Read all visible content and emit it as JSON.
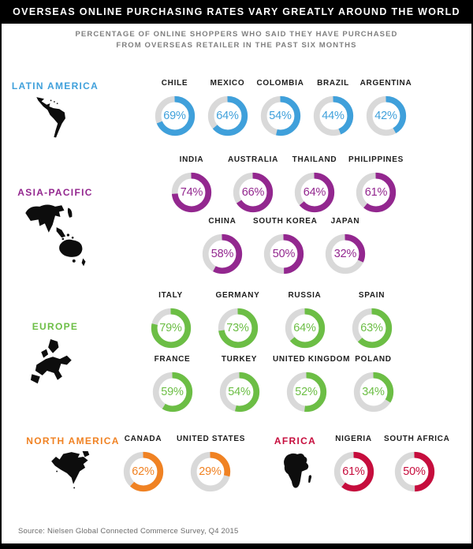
{
  "header": {
    "title": "OVERSEAS ONLINE PURCHASING RATES VARY GREATLY AROUND THE WORLD",
    "subtitle_line1": "PERCENTAGE OF ONLINE SHOPPERS WHO SAID THEY HAVE PURCHASED",
    "subtitle_line2": "FROM OVERSEAS RETAILER IN THE PAST SIX MONTHS"
  },
  "footer": {
    "source": "Source: Nielsen Global Connected Commerce Survey, Q4 2015"
  },
  "chart_data": {
    "type": "pie",
    "variant": "donut-grid",
    "title": "OVERSEAS ONLINE PURCHASING RATES VARY GREATLY AROUND THE WORLD",
    "subtitle": "PERCENTAGE OF ONLINE SHOPPERS WHO SAID THEY HAVE PURCHASED FROM OVERSEAS RETAILER IN THE PAST SIX MONTHS",
    "unit": "%",
    "value_range": [
      0,
      100
    ],
    "track_color": "#d9d9d9",
    "regions": [
      {
        "name": "LATIN AMERICA",
        "color": "#3fa0db",
        "map_icon": "latin-america-map-icon",
        "rows": [
          [
            {
              "country": "CHILE",
              "value": 69
            },
            {
              "country": "MEXICO",
              "value": 64
            },
            {
              "country": "COLOMBIA",
              "value": 54
            },
            {
              "country": "BRAZIL",
              "value": 44
            },
            {
              "country": "ARGENTINA",
              "value": 42
            }
          ]
        ]
      },
      {
        "name": "ASIA-PACIFIC",
        "color": "#93278f",
        "map_icon": "asia-pacific-map-icon",
        "rows": [
          [
            {
              "country": "INDIA",
              "value": 74
            },
            {
              "country": "AUSTRALIA",
              "value": 66
            },
            {
              "country": "THAILAND",
              "value": 64
            },
            {
              "country": "PHILIPPINES",
              "value": 61
            }
          ],
          [
            {
              "country": "CHINA",
              "value": 58
            },
            {
              "country": "SOUTH KOREA",
              "value": 50
            },
            {
              "country": "JAPAN",
              "value": 32
            }
          ]
        ]
      },
      {
        "name": "EUROPE",
        "color": "#6cbe45",
        "map_icon": "europe-map-icon",
        "rows": [
          [
            {
              "country": "ITALY",
              "value": 79
            },
            {
              "country": "GERMANY",
              "value": 73
            },
            {
              "country": "RUSSIA",
              "value": 64
            },
            {
              "country": "SPAIN",
              "value": 63
            }
          ],
          [
            {
              "country": "FRANCE",
              "value": 59
            },
            {
              "country": "TURKEY",
              "value": 54
            },
            {
              "country": "UNITED KINGDOM",
              "value": 52
            },
            {
              "country": "POLAND",
              "value": 34
            }
          ]
        ]
      },
      {
        "name": "NORTH AMERICA",
        "color": "#f08223",
        "map_icon": "north-america-map-icon",
        "rows": [
          [
            {
              "country": "CANADA",
              "value": 62
            },
            {
              "country": "UNITED STATES",
              "value": 29
            }
          ]
        ]
      },
      {
        "name": "AFRICA",
        "color": "#c60d3d",
        "map_icon": "africa-map-icon",
        "rows": [
          [
            {
              "country": "NIGERIA",
              "value": 61
            },
            {
              "country": "SOUTH AFRICA",
              "value": 50
            }
          ]
        ]
      }
    ],
    "source": "Source: Nielsen Global Connected Commerce Survey, Q4 2015"
  }
}
